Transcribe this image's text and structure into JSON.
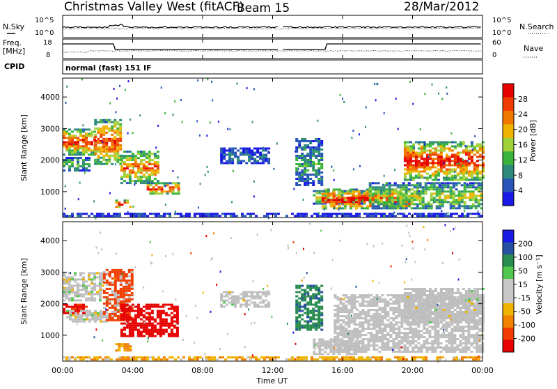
{
  "header": {
    "station": "Christmas Valley West (fitACF)",
    "beam": "Beam 15",
    "date": "28/Mar/2012"
  },
  "strips": {
    "nsky_label": "N.Sky",
    "nsearch_label": "N.Search",
    "noise_ticks": [
      "10^5",
      "10^0"
    ],
    "freq_label": "Freq.",
    "freq_unit": "[MHz]",
    "freq_ticks": [
      "18",
      "8"
    ],
    "nave_label": "Nave",
    "nave_ticks": [
      "60",
      "0"
    ],
    "cpid_label": "CPID",
    "cpid_value": "normal (fast) 151 IF"
  },
  "colors": {
    "power": [
      "#1a1ae6",
      "#2856b8",
      "#2e8a7a",
      "#3cb43c",
      "#a0d23c",
      "#f0b400",
      "#f07800",
      "#f03c00",
      "#e60000"
    ],
    "velocity": [
      "#e60000",
      "#f03c00",
      "#f08200",
      "#f0b400",
      "#c8c8c8",
      "#c8c8c8",
      "#50c850",
      "#288c50",
      "#2850a0",
      "#1a1ae6"
    ],
    "ground_scatter": "#bebebe"
  },
  "chart_data": [
    {
      "type": "heatmap",
      "name": "power",
      "xlabel": "Time UT",
      "ylabel": "Slant Range [km]",
      "x_ticks": [
        "00:00",
        "04:00",
        "08:00",
        "12:00",
        "16:00",
        "20:00",
        "00:00"
      ],
      "xlim_hours": [
        0,
        24
      ],
      "y_ticks": [
        1000,
        2000,
        3000,
        4000
      ],
      "ylim_km": [
        180,
        4600
      ],
      "colorbar_label": "Power [dB]",
      "colorbar_ticks": [
        "28",
        "24",
        "20",
        "16",
        "12",
        "8",
        "4"
      ],
      "colorbar_range": [
        0,
        32
      ],
      "regions": [
        {
          "t0": 0.0,
          "t1": 1.8,
          "r0": 2200,
          "r1": 3000,
          "peak": 0.9
        },
        {
          "t0": 0.0,
          "t1": 1.5,
          "r0": 1700,
          "r1": 2100,
          "peak": 0.45
        },
        {
          "t0": 1.8,
          "t1": 3.3,
          "r0": 1900,
          "r1": 3300,
          "peak": 0.85
        },
        {
          "t0": 3.3,
          "t1": 5.5,
          "r0": 1300,
          "r1": 2300,
          "peak": 0.8
        },
        {
          "t0": 4.8,
          "t1": 6.6,
          "r0": 950,
          "r1": 1300,
          "peak": 0.95
        },
        {
          "t0": 3.0,
          "t1": 3.9,
          "r0": 500,
          "r1": 750,
          "peak": 1.0
        },
        {
          "t0": 9.0,
          "t1": 11.8,
          "r0": 1900,
          "r1": 2400,
          "peak": 0.2
        },
        {
          "t0": 13.3,
          "t1": 14.8,
          "r0": 1200,
          "r1": 2700,
          "peak": 0.35
        },
        {
          "t0": 14.3,
          "t1": 17.5,
          "r0": 650,
          "r1": 1050,
          "peak": 0.6
        },
        {
          "t0": 14.8,
          "t1": 20.0,
          "r0": 450,
          "r1": 1100,
          "peak": 0.95
        },
        {
          "t0": 19.5,
          "t1": 24.0,
          "r0": 1400,
          "r1": 2600,
          "peak": 0.95
        },
        {
          "t0": 17.5,
          "t1": 24.0,
          "r0": 450,
          "r1": 1300,
          "peak": 0.55
        },
        {
          "t0": 0.0,
          "t1": 24.0,
          "r0": 200,
          "r1": 330,
          "peak": 0.1
        }
      ]
    },
    {
      "type": "heatmap",
      "name": "velocity",
      "xlabel": "Time UT",
      "ylabel": "Slant Range [km]",
      "x_ticks": [
        "00:00",
        "04:00",
        "08:00",
        "12:00",
        "16:00",
        "20:00",
        "00:00"
      ],
      "xlim_hours": [
        0,
        24
      ],
      "y_ticks": [
        1000,
        2000,
        3000,
        4000
      ],
      "ylim_km": [
        180,
        4600
      ],
      "colorbar_label": "Velocity [m s⁻¹]",
      "colorbar_ticks": [
        "200",
        "100",
        "50",
        "15",
        "-15",
        "-50",
        "-100",
        "-200"
      ],
      "colorbar_range": [
        -250,
        250
      ],
      "regions": [
        {
          "t0": 0.0,
          "t1": 2.3,
          "r0": 2100,
          "r1": 3000,
          "v": 0.0,
          "g": 0.7
        },
        {
          "t0": 0.0,
          "t1": 1.4,
          "r0": 1700,
          "r1": 2000,
          "v": -220,
          "g": 0.0
        },
        {
          "t0": 0.2,
          "t1": 2.5,
          "r0": 1450,
          "r1": 1800,
          "v": 0.0,
          "g": 0.8
        },
        {
          "t0": 2.3,
          "t1": 4.0,
          "r0": 1500,
          "r1": 3100,
          "v": -160,
          "g": 0.2
        },
        {
          "t0": 3.3,
          "t1": 6.6,
          "r0": 950,
          "r1": 2000,
          "v": -230,
          "g": 0.0
        },
        {
          "t0": 3.0,
          "t1": 3.9,
          "r0": 500,
          "r1": 750,
          "v": -60,
          "g": 0.0
        },
        {
          "t0": 9.0,
          "t1": 11.8,
          "r0": 1900,
          "r1": 2400,
          "v": 0.0,
          "g": 0.9
        },
        {
          "t0": 13.3,
          "t1": 14.8,
          "r0": 1200,
          "r1": 2600,
          "v": 80,
          "g": 0.0
        },
        {
          "t0": 14.3,
          "t1": 17.0,
          "r0": 400,
          "r1": 900,
          "v": 0.0,
          "g": 1.0
        },
        {
          "t0": 15.5,
          "t1": 24.0,
          "r0": 450,
          "r1": 2300,
          "v": 0.0,
          "g": 1.0
        },
        {
          "t0": 19.5,
          "t1": 24.0,
          "r0": 1400,
          "r1": 2500,
          "v": 0.0,
          "g": 0.95
        },
        {
          "t0": 0.0,
          "t1": 24.0,
          "r0": 200,
          "r1": 330,
          "v": -40,
          "g": 0.0
        }
      ]
    }
  ]
}
